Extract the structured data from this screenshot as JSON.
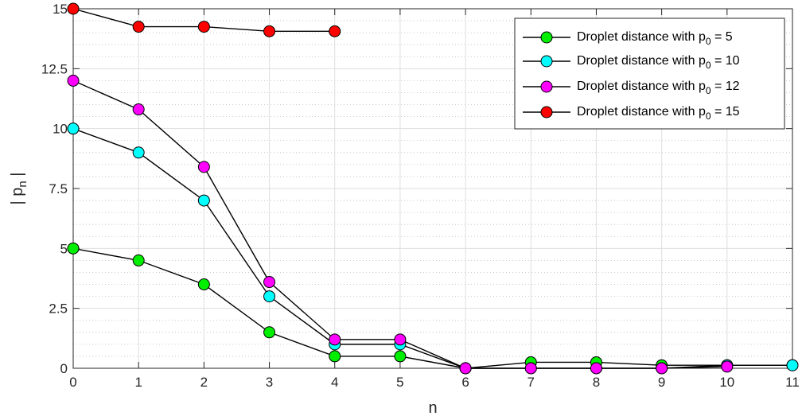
{
  "chart_data": {
    "type": "line",
    "xlabel": "n",
    "ylabel": "| p",
    "ylabel_subscript": "n",
    "ylabel_suffix": " |",
    "xlim": [
      0,
      11
    ],
    "ylim": [
      0,
      15
    ],
    "xticks": [
      0,
      1,
      2,
      3,
      4,
      5,
      6,
      7,
      8,
      9,
      10,
      11
    ],
    "yticks": [
      {
        "value": 0,
        "label": "0"
      },
      {
        "value": 2.5,
        "label": "2.5"
      },
      {
        "value": 5,
        "label": "5"
      },
      {
        "value": 7.5,
        "label": "7.5"
      },
      {
        "value": 10,
        "label": "10"
      },
      {
        "value": 12.5,
        "label": "12.5"
      },
      {
        "value": 15,
        "label": "15"
      }
    ],
    "grid": true,
    "minor_grid": true,
    "legend_position": "top-right",
    "series": [
      {
        "name_prefix": "Droplet distance with p",
        "name_subscript": "0",
        "name_suffix": " = 5",
        "color": "#00ee00",
        "x": [
          0,
          1,
          2,
          3,
          4,
          5,
          6,
          7,
          8,
          9,
          10,
          11
        ],
        "y": [
          5,
          4.5,
          3.5,
          1.5,
          0.5,
          0.5,
          0,
          0.25,
          0.25,
          0.125,
          0.125,
          0.125
        ]
      },
      {
        "name_prefix": "Droplet distance with p",
        "name_subscript": "0",
        "name_suffix": " = 10",
        "color": "#00ffff",
        "x": [
          0,
          1,
          2,
          3,
          4,
          5,
          6,
          7,
          8,
          9,
          10,
          11
        ],
        "y": [
          10,
          9,
          7,
          3,
          1,
          1,
          0,
          0,
          0,
          0,
          0.125,
          0.125
        ]
      },
      {
        "name_prefix": "Droplet distance with p",
        "name_subscript": "0",
        "name_suffix": " = 12",
        "color": "#ff00ff",
        "x": [
          0,
          1,
          2,
          3,
          4,
          5,
          6,
          7,
          8,
          9,
          10
        ],
        "y": [
          12,
          10.8,
          8.4,
          3.6,
          1.2,
          1.2,
          0,
          0,
          0,
          0,
          0.07
        ]
      },
      {
        "name_prefix": "Droplet distance with p",
        "name_subscript": "0",
        "name_suffix": " = 15",
        "color": "#ff0000",
        "x": [
          0,
          1,
          2,
          3,
          4
        ],
        "y": [
          15,
          14.25,
          14.25,
          14.06,
          14.06
        ]
      }
    ]
  }
}
